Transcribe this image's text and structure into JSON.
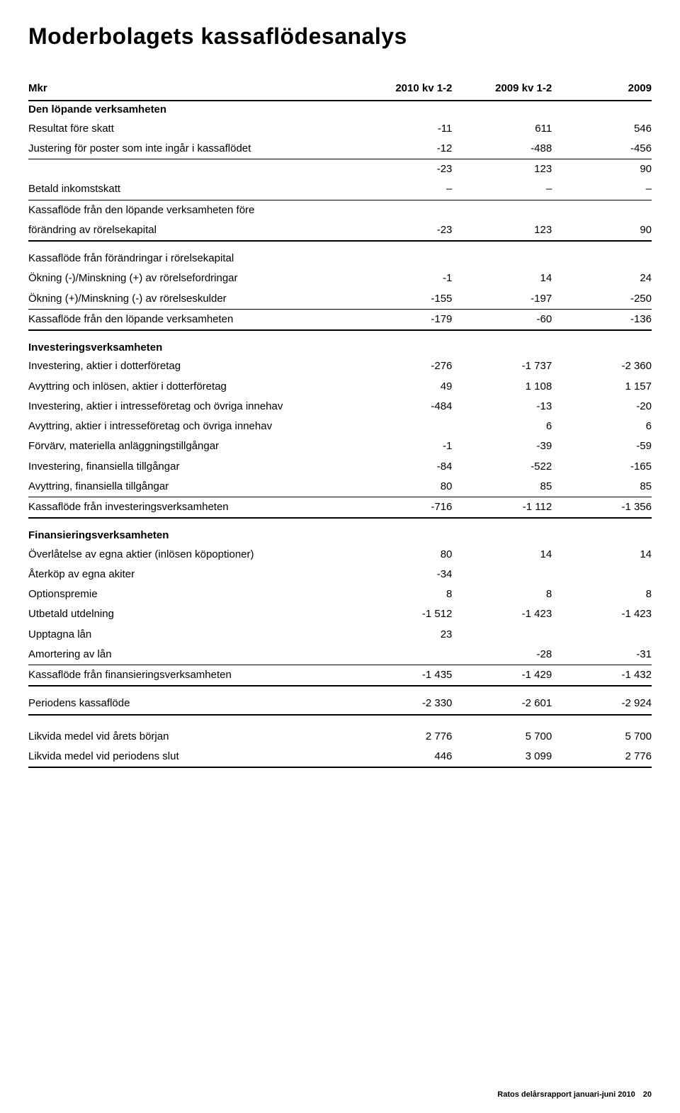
{
  "title": "Moderbolagets kassaflödesanalys",
  "header": {
    "c0": "Mkr",
    "c1": "2010 kv 1-2",
    "c2": "2009 kv 1-2",
    "c3": "2009"
  },
  "sections": {
    "s1": {
      "title": "Den löpande verksamheten"
    },
    "s2": {
      "title": "Investeringsverksamheten"
    },
    "s3": {
      "title": "Finansieringsverksamheten"
    }
  },
  "rows": {
    "r1": {
      "label": "Resultat före skatt",
      "v1": "-11",
      "v2": "611",
      "v3": "546"
    },
    "r2": {
      "label": "Justering för poster som inte ingår i kassaflödet",
      "v1": "-12",
      "v2": "-488",
      "v3": "-456"
    },
    "r3": {
      "label": "",
      "v1": "-23",
      "v2": "123",
      "v3": "90"
    },
    "r4": {
      "label": "Betald inkomstskatt",
      "v1": "–",
      "v2": "–",
      "v3": "–"
    },
    "r5": {
      "label": "Kassaflöde från den löpande verksamheten före",
      "v1": "",
      "v2": "",
      "v3": ""
    },
    "r6": {
      "label": "förändring av rörelsekapital",
      "v1": "-23",
      "v2": "123",
      "v3": "90"
    },
    "r7": {
      "label": "Kassaflöde från förändringar i rörelsekapital",
      "v1": "",
      "v2": "",
      "v3": ""
    },
    "r8": {
      "label": "Ökning (-)/Minskning (+) av rörelsefordringar",
      "v1": "-1",
      "v2": "14",
      "v3": "24"
    },
    "r9": {
      "label": "Ökning (+)/Minskning (-) av rörelseskulder",
      "v1": "-155",
      "v2": "-197",
      "v3": "-250"
    },
    "r10": {
      "label": "Kassaflöde från den löpande verksamheten",
      "v1": "-179",
      "v2": "-60",
      "v3": "-136"
    },
    "r11": {
      "label": "Investering, aktier i dotterföretag",
      "v1": "-276",
      "v2": "-1 737",
      "v3": "-2 360"
    },
    "r12": {
      "label": "Avyttring och inlösen, aktier i dotterföretag",
      "v1": "49",
      "v2": "1 108",
      "v3": "1 157"
    },
    "r13": {
      "label": "Investering, aktier i intresseföretag och övriga innehav",
      "v1": "-484",
      "v2": "-13",
      "v3": "-20"
    },
    "r14": {
      "label": "Avyttring, aktier i intresseföretag och övriga innehav",
      "v1": "",
      "v2": "6",
      "v3": "6"
    },
    "r15": {
      "label": "Förvärv, materiella anläggningstillgångar",
      "v1": "-1",
      "v2": "-39",
      "v3": "-59"
    },
    "r16": {
      "label": "Investering, finansiella tillgångar",
      "v1": "-84",
      "v2": "-522",
      "v3": "-165"
    },
    "r17": {
      "label": "Avyttring, finansiella tillgångar",
      "v1": "80",
      "v2": "85",
      "v3": "85"
    },
    "r18": {
      "label": "Kassaflöde från investeringsverksamheten",
      "v1": "-716",
      "v2": "-1 112",
      "v3": "-1 356"
    },
    "r19": {
      "label": "Överlåtelse av egna aktier (inlösen köpoptioner)",
      "v1": "80",
      "v2": "14",
      "v3": "14"
    },
    "r20": {
      "label": "Återköp av egna akiter",
      "v1": "-34",
      "v2": "",
      "v3": ""
    },
    "r21": {
      "label": "Optionspremie",
      "v1": "8",
      "v2": "8",
      "v3": "8"
    },
    "r22": {
      "label": "Utbetald utdelning",
      "v1": "-1 512",
      "v2": "-1 423",
      "v3": "-1 423"
    },
    "r23": {
      "label": "Upptagna lån",
      "v1": "23",
      "v2": "",
      "v3": ""
    },
    "r24": {
      "label": "Amortering av lån",
      "v1": "",
      "v2": "-28",
      "v3": "-31"
    },
    "r25": {
      "label": "Kassaflöde från finansieringsverksamheten",
      "v1": "-1 435",
      "v2": "-1 429",
      "v3": "-1 432"
    },
    "r26": {
      "label": "Periodens kassaflöde",
      "v1": "-2 330",
      "v2": "-2 601",
      "v3": "-2 924"
    },
    "r27": {
      "label": "Likvida medel vid årets början",
      "v1": "2 776",
      "v2": "5 700",
      "v3": "5 700"
    },
    "r28": {
      "label": "Likvida medel vid periodens slut",
      "v1": "446",
      "v2": "3 099",
      "v3": "2 776"
    }
  },
  "footer": {
    "text": "Ratos delårsrapport januari-juni 2010",
    "page": "20"
  }
}
